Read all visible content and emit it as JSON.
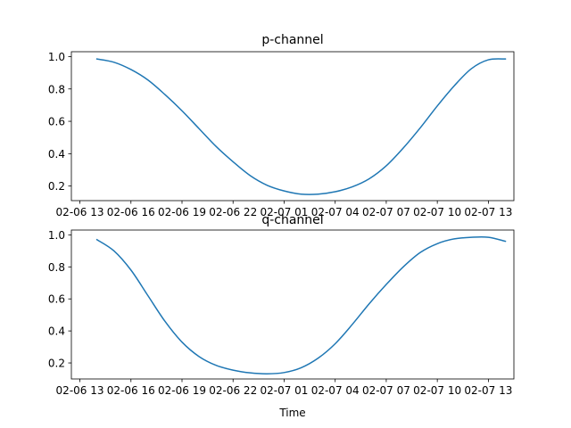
{
  "chart_data": [
    {
      "type": "line",
      "title": "p-channel",
      "xlabel": "",
      "ylabel": "",
      "x_tick_labels": [
        "02-06 13",
        "02-06 16",
        "02-06 19",
        "02-06 22",
        "02-07 01",
        "02-07 04",
        "02-07 07",
        "02-07 10",
        "02-07 13"
      ],
      "y_tick_labels": [
        "0.2",
        "0.4",
        "0.6",
        "0.8",
        "1.0"
      ],
      "y_ticks": [
        0.2,
        0.4,
        0.6,
        0.8,
        1.0
      ],
      "xlim": [
        "2024-02-06 12:30",
        "2024-02-07 14:30"
      ],
      "ylim": [
        0.11,
        1.03
      ],
      "grid": false,
      "color": "#1f77b4",
      "series": [
        {
          "x": [
            "2024-02-06 14:00",
            "2024-02-06 15:00",
            "2024-02-06 16:00",
            "2024-02-06 17:00",
            "2024-02-06 18:00",
            "2024-02-06 19:00",
            "2024-02-06 20:00",
            "2024-02-06 21:00",
            "2024-02-06 22:00",
            "2024-02-06 23:00",
            "2024-02-07 00:00",
            "2024-02-07 01:00",
            "2024-02-07 02:00",
            "2024-02-07 03:00",
            "2024-02-07 04:00",
            "2024-02-07 05:00",
            "2024-02-07 06:00",
            "2024-02-07 07:00",
            "2024-02-07 08:00",
            "2024-02-07 09:00",
            "2024-02-07 10:00",
            "2024-02-07 11:00",
            "2024-02-07 12:00",
            "2024-02-07 13:00",
            "2024-02-07 14:00"
          ],
          "y": [
            0.985,
            0.965,
            0.92,
            0.855,
            0.765,
            0.665,
            0.555,
            0.445,
            0.35,
            0.265,
            0.205,
            0.17,
            0.15,
            0.15,
            0.165,
            0.195,
            0.245,
            0.325,
            0.435,
            0.56,
            0.695,
            0.82,
            0.925,
            0.98,
            0.985
          ]
        }
      ]
    },
    {
      "type": "line",
      "title": "q-channel",
      "xlabel": "Time",
      "ylabel": "",
      "x_tick_labels": [
        "02-06 13",
        "02-06 16",
        "02-06 19",
        "02-06 22",
        "02-07 01",
        "02-07 04",
        "02-07 07",
        "02-07 10",
        "02-07 13"
      ],
      "y_tick_labels": [
        "0.2",
        "0.4",
        "0.6",
        "0.8",
        "1.0"
      ],
      "y_ticks": [
        0.2,
        0.4,
        0.6,
        0.8,
        1.0
      ],
      "xlim": [
        "2024-02-06 12:30",
        "2024-02-07 14:30"
      ],
      "ylim": [
        0.1,
        1.03
      ],
      "grid": false,
      "color": "#1f77b4",
      "series": [
        {
          "x": [
            "2024-02-06 14:00",
            "2024-02-06 15:00",
            "2024-02-06 16:00",
            "2024-02-06 17:00",
            "2024-02-06 18:00",
            "2024-02-06 19:00",
            "2024-02-06 20:00",
            "2024-02-06 21:00",
            "2024-02-06 22:00",
            "2024-02-06 23:00",
            "2024-02-07 00:00",
            "2024-02-07 01:00",
            "2024-02-07 02:00",
            "2024-02-07 03:00",
            "2024-02-07 04:00",
            "2024-02-07 05:00",
            "2024-02-07 06:00",
            "2024-02-07 07:00",
            "2024-02-07 08:00",
            "2024-02-07 09:00",
            "2024-02-07 10:00",
            "2024-02-07 11:00",
            "2024-02-07 12:00",
            "2024-02-07 13:00",
            "2024-02-07 14:00"
          ],
          "y": [
            0.97,
            0.9,
            0.78,
            0.62,
            0.46,
            0.33,
            0.24,
            0.185,
            0.155,
            0.138,
            0.132,
            0.14,
            0.17,
            0.23,
            0.32,
            0.44,
            0.57,
            0.69,
            0.8,
            0.89,
            0.945,
            0.975,
            0.985,
            0.985,
            0.96
          ]
        }
      ]
    }
  ]
}
